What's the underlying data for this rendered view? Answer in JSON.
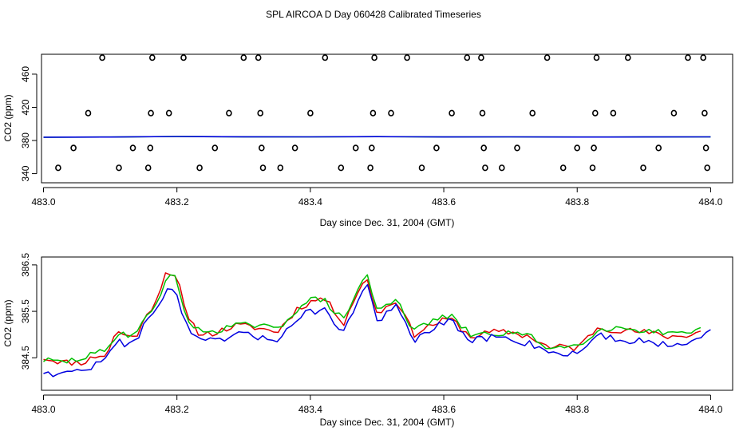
{
  "title": "SPL AIRCOA D  Day 060428  Calibrated Timeseries",
  "colors": {
    "red": "#e00000",
    "green": "#00c000",
    "blue": "#0000e0",
    "axis": "#000000"
  },
  "chart_data": [
    {
      "type": "scatter",
      "title": "",
      "xlabel": "Day since Dec. 31, 2004 (GMT)",
      "ylabel": "CO2 (ppm)",
      "xlim": [
        482.997,
        484.033
      ],
      "ylim": [
        329,
        484
      ],
      "xticks": [
        483.0,
        483.2,
        483.4,
        483.6,
        483.8,
        484.0
      ],
      "xtick_labels": [
        "483.0",
        "483.2",
        "483.4",
        "483.6",
        "483.8",
        "484.0"
      ],
      "yticks": [
        340,
        380,
        420,
        460
      ],
      "ytick_labels": [
        "340",
        "380",
        "420",
        "460"
      ],
      "flat_line": {
        "x": [
          483.0,
          483.1,
          483.2,
          483.3,
          483.4,
          483.5,
          483.6,
          483.7,
          483.8,
          483.9,
          484.0
        ],
        "y": [
          384.0,
          384.2,
          384.8,
          384.5,
          384.4,
          384.6,
          384.3,
          384.4,
          384.2,
          384.3,
          384.4
        ]
      },
      "points": {
        "x": [
          483.022,
          483.045,
          483.067,
          483.088,
          483.113,
          483.134,
          483.157,
          483.16,
          483.161,
          483.163,
          483.188,
          483.21,
          483.234,
          483.257,
          483.278,
          483.3,
          483.322,
          483.325,
          483.327,
          483.329,
          483.355,
          483.377,
          483.4,
          483.422,
          483.446,
          483.468,
          483.49,
          483.492,
          483.494,
          483.496,
          483.521,
          483.545,
          483.567,
          483.589,
          483.612,
          483.635,
          483.656,
          483.658,
          483.66,
          483.662,
          483.687,
          483.71,
          483.733,
          483.755,
          483.779,
          483.8,
          483.823,
          483.825,
          483.827,
          483.829,
          483.854,
          483.876,
          483.899,
          483.922,
          483.945,
          483.966,
          483.989,
          483.991,
          483.993,
          483.995
        ],
        "y": [
          347,
          371,
          413,
          480,
          347,
          371,
          347,
          371,
          413,
          480,
          413,
          480,
          347,
          371,
          413,
          480,
          480,
          413,
          371,
          347,
          347,
          371,
          413,
          480,
          347,
          371,
          347,
          371,
          413,
          480,
          413,
          480,
          347,
          371,
          413,
          480,
          480,
          413,
          371,
          347,
          347,
          371,
          413,
          480,
          347,
          371,
          347,
          371,
          413,
          480,
          413,
          480,
          347,
          371,
          413,
          480,
          480,
          413,
          371,
          347
        ]
      }
    },
    {
      "type": "line",
      "title": "",
      "xlabel": "Day since Dec. 31, 2004 (GMT)",
      "ylabel": "CO2 (ppm)",
      "xlim": [
        482.997,
        484.033
      ],
      "ylim": [
        383.8,
        386.67
      ],
      "xticks": [
        483.0,
        483.2,
        483.4,
        483.6,
        483.8,
        484.0
      ],
      "xtick_labels": [
        "483.0",
        "483.2",
        "483.4",
        "483.6",
        "483.8",
        "484.0"
      ],
      "yticks": [
        384.5,
        385.5,
        386.5
      ],
      "ytick_labels": [
        "384.5",
        "385.5",
        "386.5"
      ],
      "anchors_x": [
        483.0,
        483.03,
        483.06,
        483.08,
        483.095,
        483.11,
        483.125,
        483.14,
        483.17,
        483.185,
        483.2,
        483.215,
        483.235,
        483.26,
        483.29,
        483.32,
        483.35,
        483.38,
        483.4,
        483.42,
        483.45,
        483.47,
        483.485,
        483.5,
        483.53,
        483.555,
        483.58,
        483.61,
        483.64,
        483.67,
        483.7,
        483.73,
        483.76,
        483.78,
        483.8,
        483.83,
        483.86,
        483.9,
        483.94,
        483.97,
        484.0
      ],
      "series": [
        {
          "name": "red",
          "color": "#e00000",
          "x_end": 483.985,
          "anchors_y": [
            384.5,
            384.4,
            384.4,
            384.55,
            384.55,
            385.1,
            384.95,
            385.0,
            385.8,
            386.4,
            386.25,
            385.35,
            385.0,
            385.05,
            385.2,
            385.15,
            385.05,
            385.55,
            385.7,
            385.8,
            385.25,
            385.9,
            386.2,
            385.45,
            385.75,
            385.0,
            385.2,
            385.35,
            384.95,
            385.05,
            385.05,
            384.95,
            384.7,
            384.75,
            384.7,
            385.15,
            385.1,
            385.05,
            384.95,
            385.0,
            385.15
          ],
          "noise": 0.07,
          "seed": 11
        },
        {
          "name": "green",
          "color": "#00c000",
          "x_end": 483.985,
          "anchors_y": [
            384.45,
            384.4,
            384.5,
            384.6,
            384.65,
            385.05,
            385.0,
            385.05,
            385.7,
            386.25,
            386.2,
            385.3,
            385.05,
            385.1,
            385.2,
            385.2,
            385.1,
            385.55,
            385.75,
            385.75,
            385.3,
            385.95,
            386.3,
            385.5,
            385.8,
            385.05,
            385.3,
            385.4,
            385.0,
            385.0,
            385.05,
            384.95,
            384.7,
            384.75,
            384.75,
            385.1,
            385.15,
            385.1,
            385.0,
            385.0,
            385.2
          ],
          "noise": 0.07,
          "seed": 29
        },
        {
          "name": "blue",
          "color": "#0000e0",
          "x_end": 484.0,
          "anchors_y": [
            384.2,
            384.15,
            384.25,
            384.35,
            384.5,
            384.85,
            384.8,
            384.95,
            385.55,
            386.05,
            385.85,
            385.15,
            384.85,
            384.85,
            385.0,
            384.95,
            384.9,
            385.35,
            385.5,
            385.55,
            385.05,
            385.7,
            386.1,
            385.3,
            385.6,
            384.85,
            385.1,
            385.3,
            384.85,
            384.95,
            384.9,
            384.8,
            384.65,
            384.55,
            384.6,
            385.0,
            384.9,
            384.85,
            384.8,
            384.85,
            385.15
          ],
          "noise": 0.08,
          "seed": 47
        }
      ]
    }
  ]
}
